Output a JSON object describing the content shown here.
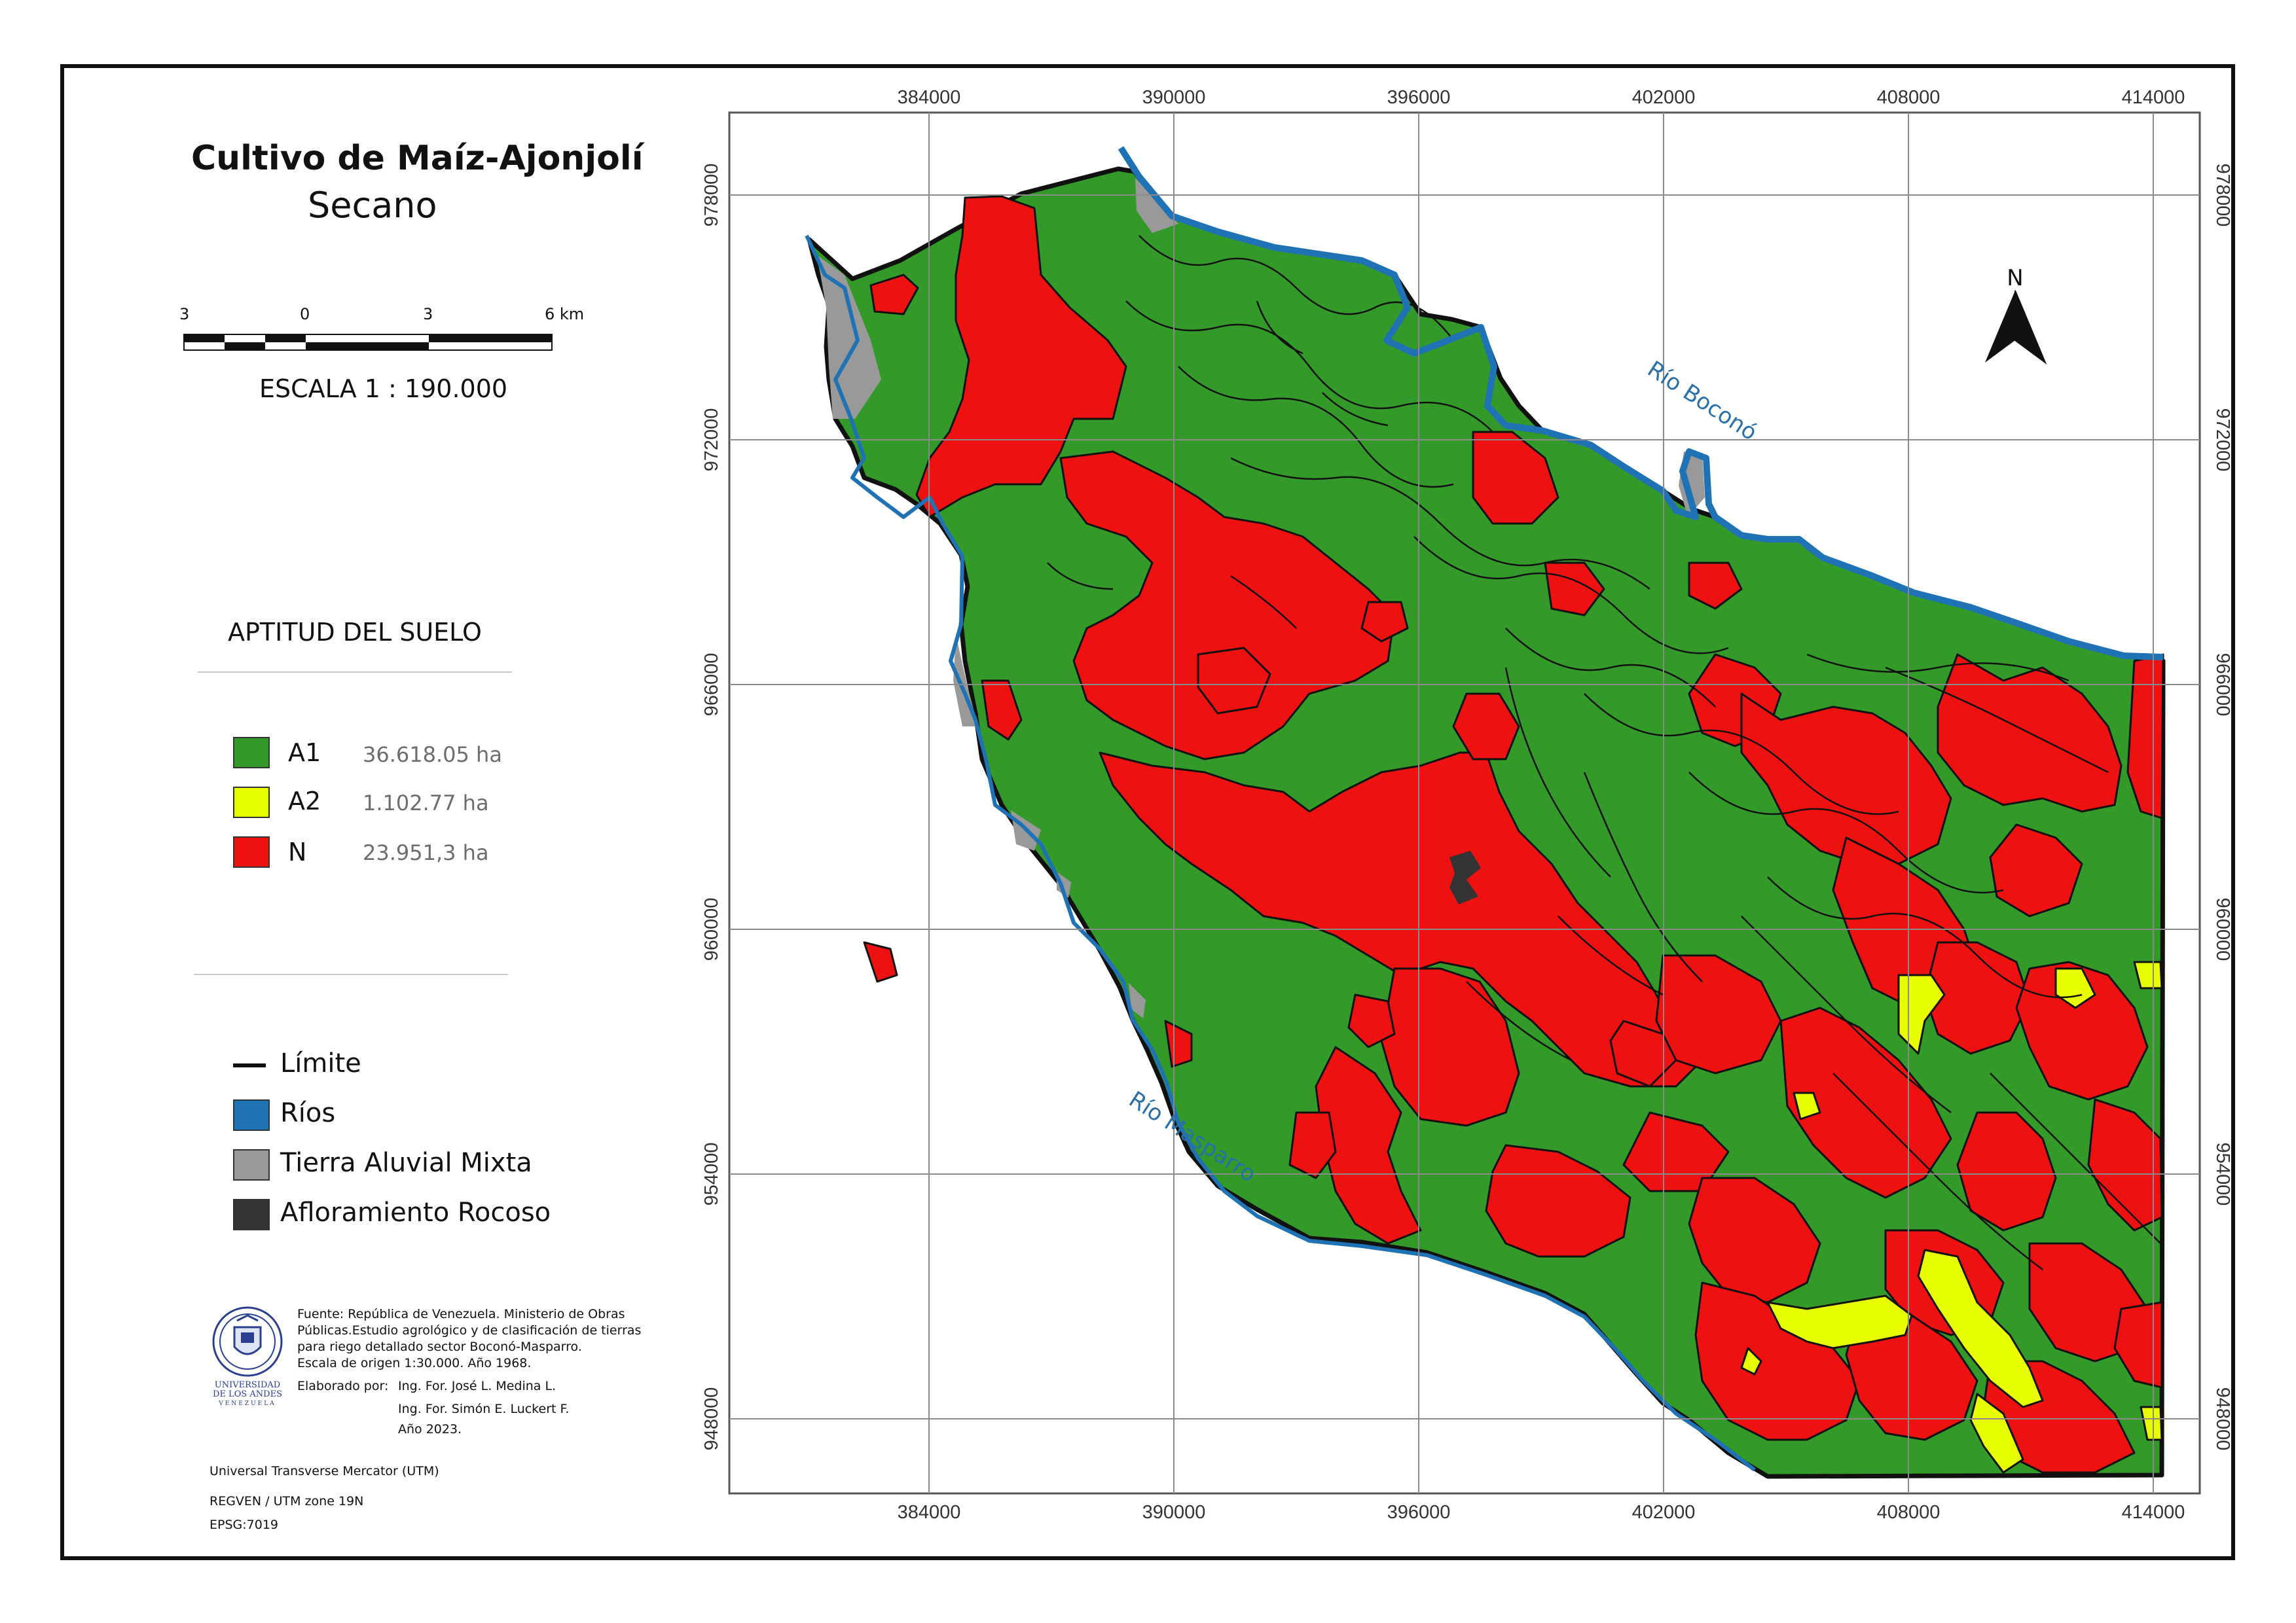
{
  "title": {
    "line1": "Cultivo de  Maíz-Ajonjolí",
    "line2": "Secano"
  },
  "scale_bar": {
    "labels": [
      "3",
      "0",
      "3",
      "6 km"
    ],
    "text": "ESCALA  1 : 190.000"
  },
  "legend": {
    "heading": "APTITUD DEL SUELO",
    "classes": [
      {
        "code": "A1",
        "area": "36.618.05 ha",
        "color": "#339a2a"
      },
      {
        "code": "A2",
        "area": "1.102.77 ha",
        "color": "#e8ff00"
      },
      {
        "code": "N",
        "area": "23.951,3 ha",
        "color": "#ee1111"
      }
    ],
    "features": [
      {
        "label": "Límite",
        "symbol": "line",
        "color": "#111111"
      },
      {
        "label": "Ríos",
        "symbol": "box",
        "color": "#1f72b4"
      },
      {
        "label": "Tierra Aluvial Mixta",
        "symbol": "box",
        "color": "#999999"
      },
      {
        "label": "Afloramiento Rocoso",
        "symbol": "box",
        "color": "#333333"
      }
    ]
  },
  "source": {
    "lines": [
      "Fuente: República de Venezuela. Ministerio de Obras",
      "Públicas.Estudio agrológico y de clasificación de tierras",
      "para riego detallado sector Boconó-Masparro.",
      "Escala de origen 1:30.000. Año 1968."
    ],
    "made_by_label": "Elaborado por:",
    "authors": [
      "Ing. For. José L. Medina L.",
      "Ing. For. Simón E. Luckert F.",
      "Año 2023."
    ]
  },
  "logo": {
    "text_line1": "UNIVERSIDAD",
    "text_line2": "DE LOS ANDES",
    "text_line3": "VENEZUELA"
  },
  "projection": [
    "Universal Transverse Mercator (UTM)",
    "REGVEN / UTM zone 19N",
    "EPSG:7019"
  ],
  "map": {
    "x_ticks": [
      "384000",
      "390000",
      "396000",
      "402000",
      "408000",
      "414000"
    ],
    "y_ticks": [
      "978000",
      "972000",
      "966000",
      "960000",
      "954000",
      "948000"
    ],
    "north_label": "N",
    "rivers": [
      "Río Boconó",
      "Río Masparro"
    ]
  }
}
